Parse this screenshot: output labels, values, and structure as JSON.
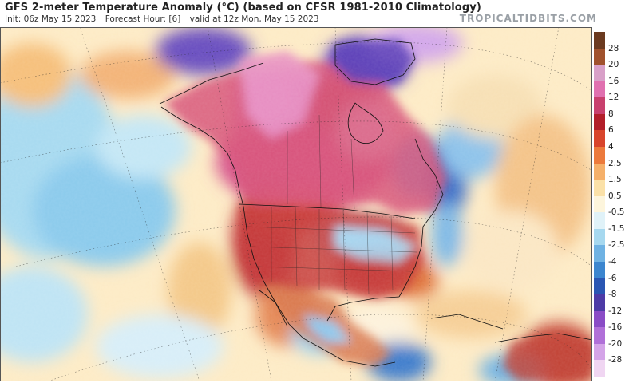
{
  "header": {
    "title": "GFS 2-meter Temperature Anomaly (°C) (based on CFSR 1981-2010 Climatology)",
    "init": "Init: 06z May 15 2023",
    "forecast_hour": "Forecast Hour: [6]",
    "valid": "valid at 12z Mon, May 15 2023",
    "brand": "TROPICALTIDBITS.COM"
  },
  "colorbar": {
    "labels": [
      "28",
      "20",
      "16",
      "12",
      "8",
      "6",
      "4",
      "2.5",
      "1.5",
      "0.5",
      "-0.5",
      "-1.5",
      "-2.5",
      "-4",
      "-6",
      "-8",
      "-12",
      "-16",
      "-20",
      "-28"
    ],
    "colors": [
      "#6b3a1f",
      "#a0522d",
      "#d8a0c8",
      "#e070b0",
      "#c8406e",
      "#b21e2a",
      "#d8452c",
      "#ec7a3c",
      "#f5b06a",
      "#fbe1a8",
      "#fdf5dc",
      "#e0f2f8",
      "#a6d8ef",
      "#6fb2e3",
      "#3c86cf",
      "#2a56b3",
      "#4d3ba6",
      "#8a4cc6",
      "#b070d8",
      "#d4a4e8",
      "#f0d6f2"
    ]
  },
  "map": {
    "regions": [
      "Pacific Ocean",
      "Alaska",
      "Canada",
      "Hudson Bay",
      "Greenland",
      "United States",
      "Mexico",
      "Gulf of Mexico",
      "Caribbean",
      "Atlantic Ocean"
    ]
  }
}
